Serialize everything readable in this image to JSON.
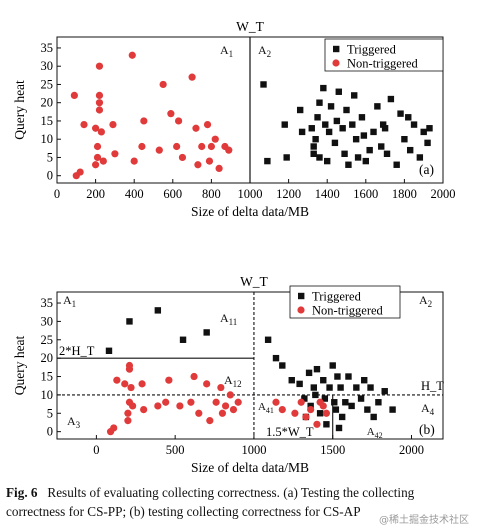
{
  "chart_data": [
    {
      "type": "scatter",
      "panel_label": "(a)",
      "xlabel": "Size of delta data/MB",
      "ylabel": "Query heat",
      "xlim": [
        0,
        2000
      ],
      "ylim": [
        -2,
        38
      ],
      "xticks": [
        "0",
        "200",
        "400",
        "600",
        "800",
        "1000",
        "1200",
        "1400",
        "1600",
        "1800",
        "2000"
      ],
      "yticks": [
        "0",
        "5",
        "10",
        "15",
        "20",
        "25",
        "30",
        "35"
      ],
      "threshold_label": "W_T",
      "region_labels": [
        "A1",
        "A2"
      ],
      "legend_position": "top-right",
      "series": [
        {
          "name": "Triggered",
          "marker": "square",
          "color": "#111111",
          "points": [
            [
              1070,
              25
            ],
            [
              1090,
              4
            ],
            [
              1180,
              14
            ],
            [
              1190,
              5
            ],
            [
              1260,
              18
            ],
            [
              1270,
              12
            ],
            [
              1320,
              13
            ],
            [
              1330,
              8
            ],
            [
              1330,
              6
            ],
            [
              1340,
              10
            ],
            [
              1350,
              16
            ],
            [
              1360,
              20
            ],
            [
              1360,
              5
            ],
            [
              1380,
              24
            ],
            [
              1390,
              14
            ],
            [
              1400,
              4
            ],
            [
              1410,
              12
            ],
            [
              1420,
              19
            ],
            [
              1440,
              9
            ],
            [
              1450,
              15
            ],
            [
              1460,
              23
            ],
            [
              1480,
              13
            ],
            [
              1490,
              6
            ],
            [
              1500,
              18
            ],
            [
              1510,
              3
            ],
            [
              1530,
              14
            ],
            [
              1540,
              22
            ],
            [
              1550,
              10
            ],
            [
              1560,
              5
            ],
            [
              1580,
              16
            ],
            [
              1590,
              11
            ],
            [
              1600,
              4
            ],
            [
              1620,
              7
            ],
            [
              1640,
              12
            ],
            [
              1660,
              19
            ],
            [
              1680,
              8
            ],
            [
              1690,
              14
            ],
            [
              1700,
              13
            ],
            [
              1710,
              6
            ],
            [
              1730,
              21
            ],
            [
              1760,
              3
            ],
            [
              1780,
              17
            ],
            [
              1800,
              10
            ],
            [
              1820,
              16
            ],
            [
              1830,
              7
            ],
            [
              1850,
              14
            ],
            [
              1880,
              5
            ],
            [
              1900,
              12
            ],
            [
              1920,
              9
            ],
            [
              1930,
              13
            ]
          ]
        },
        {
          "name": "Non-triggered",
          "marker": "circle",
          "color": "#e03a3a",
          "points": [
            [
              90,
              22
            ],
            [
              100,
              0
            ],
            [
              120,
              1
            ],
            [
              140,
              14
            ],
            [
              200,
              13
            ],
            [
              200,
              3
            ],
            [
              210,
              5
            ],
            [
              210,
              8
            ],
            [
              220,
              30
            ],
            [
              220,
              22
            ],
            [
              220,
              20
            ],
            [
              220,
              18
            ],
            [
              230,
              12
            ],
            [
              240,
              4
            ],
            [
              290,
              14
            ],
            [
              300,
              6
            ],
            [
              390,
              33
            ],
            [
              400,
              4
            ],
            [
              440,
              8
            ],
            [
              450,
              15
            ],
            [
              530,
              7
            ],
            [
              550,
              25
            ],
            [
              590,
              17
            ],
            [
              620,
              8
            ],
            [
              630,
              15
            ],
            [
              650,
              5
            ],
            [
              700,
              27
            ],
            [
              720,
              13
            ],
            [
              730,
              3
            ],
            [
              750,
              8
            ],
            [
              780,
              14
            ],
            [
              790,
              4
            ],
            [
              800,
              8
            ],
            [
              820,
              10
            ],
            [
              840,
              2
            ],
            [
              870,
              8
            ],
            [
              890,
              7
            ]
          ]
        }
      ]
    },
    {
      "type": "scatter",
      "panel_label": "(b)",
      "xlabel": "Size of delta data/MB",
      "ylabel": "Query heat",
      "xlim": [
        -250,
        2200
      ],
      "ylim": [
        -2,
        38
      ],
      "xticks": [
        "0",
        "500",
        "1000",
        "1500",
        "2000"
      ],
      "yticks": [
        "0",
        "5",
        "10",
        "15",
        "20",
        "25",
        "30",
        "35"
      ],
      "threshold_labels": {
        "w": "W_T",
        "h": "H_T",
        "double_h": "2*H_T",
        "w15": "1.5*W_T"
      },
      "region_labels": [
        "A1",
        "A11",
        "A12",
        "A2",
        "A3",
        "A4",
        "A41",
        "A42"
      ],
      "legend_position": "top-right",
      "series": [
        {
          "name": "Triggered",
          "marker": "square",
          "color": "#111111",
          "points": [
            [
              80,
              22
            ],
            [
              210,
              30
            ],
            [
              390,
              33
            ],
            [
              550,
              25
            ],
            [
              700,
              27
            ],
            [
              1090,
              25
            ],
            [
              1140,
              20
            ],
            [
              1180,
              18
            ],
            [
              1240,
              14
            ],
            [
              1290,
              13
            ],
            [
              1320,
              9
            ],
            [
              1330,
              4
            ],
            [
              1350,
              16
            ],
            [
              1360,
              7
            ],
            [
              1380,
              12
            ],
            [
              1390,
              10
            ],
            [
              1400,
              17
            ],
            [
              1420,
              5
            ],
            [
              1440,
              14
            ],
            [
              1450,
              9
            ],
            [
              1460,
              2
            ],
            [
              1480,
              12
            ],
            [
              1500,
              18
            ],
            [
              1510,
              8
            ],
            [
              1520,
              6
            ],
            [
              1530,
              15
            ],
            [
              1540,
              1
            ],
            [
              1550,
              12
            ],
            [
              1560,
              4
            ],
            [
              1580,
              8
            ],
            [
              1600,
              15
            ],
            [
              1620,
              7
            ],
            [
              1650,
              12
            ],
            [
              1680,
              9
            ],
            [
              1700,
              14
            ],
            [
              1720,
              6
            ],
            [
              1740,
              12
            ],
            [
              1760,
              4
            ],
            [
              1790,
              8
            ],
            [
              1830,
              11
            ],
            [
              1880,
              6
            ]
          ]
        },
        {
          "name": "Non-triggered",
          "marker": "circle",
          "color": "#e03a3a",
          "points": [
            [
              90,
              0
            ],
            [
              110,
              1
            ],
            [
              130,
              14
            ],
            [
              180,
              13
            ],
            [
              200,
              5
            ],
            [
              200,
              3
            ],
            [
              210,
              8
            ],
            [
              210,
              18
            ],
            [
              210,
              17
            ],
            [
              220,
              12
            ],
            [
              230,
              7
            ],
            [
              290,
              13
            ],
            [
              300,
              6
            ],
            [
              390,
              7
            ],
            [
              440,
              8
            ],
            [
              460,
              14
            ],
            [
              530,
              7
            ],
            [
              600,
              8
            ],
            [
              620,
              15
            ],
            [
              650,
              5
            ],
            [
              700,
              13
            ],
            [
              720,
              3
            ],
            [
              760,
              8
            ],
            [
              790,
              12
            ],
            [
              800,
              5
            ],
            [
              820,
              7
            ],
            [
              850,
              10
            ],
            [
              870,
              6
            ],
            [
              900,
              8
            ],
            [
              1140,
              8
            ],
            [
              1180,
              6
            ],
            [
              1260,
              5
            ],
            [
              1300,
              8
            ],
            [
              1330,
              4
            ],
            [
              1360,
              6
            ],
            [
              1400,
              2
            ],
            [
              1420,
              8
            ],
            [
              1440,
              7
            ],
            [
              1460,
              5
            ]
          ]
        }
      ]
    }
  ],
  "caption": {
    "label": "Fig. 6",
    "text": "Results of evaluating collecting correctness. (a) Testing the collecting correctness for CS-PP; (b) testing collecting correctness for CS-AP"
  },
  "watermark": "@稀土掘金技术社区"
}
